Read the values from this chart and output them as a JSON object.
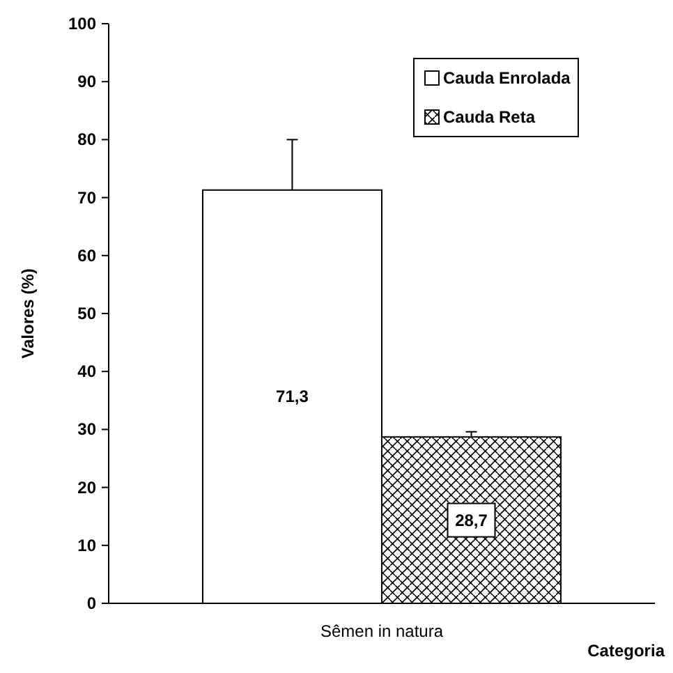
{
  "chart_data": {
    "type": "bar",
    "ylabel": "Valores (%)",
    "xlabel": "Categoria",
    "categories": [
      "Sêmen in natura"
    ],
    "series": [
      {
        "name": "Cauda Enrolada",
        "color": "#ffffff",
        "values": [
          71.3
        ],
        "errors": [
          [
            71.3,
            80.0
          ]
        ],
        "value_labels": [
          "71,3"
        ]
      },
      {
        "name": "Cauda Reta",
        "color": "#000000",
        "values": [
          28.7
        ],
        "errors": [
          [
            28.7,
            29.6
          ]
        ],
        "value_labels": [
          "28,7"
        ]
      }
    ],
    "ylim": [
      0,
      100
    ],
    "yticks": [
      0,
      10,
      20,
      30,
      40,
      50,
      60,
      70,
      80,
      90,
      100
    ],
    "grid": false,
    "legend": "top right"
  }
}
